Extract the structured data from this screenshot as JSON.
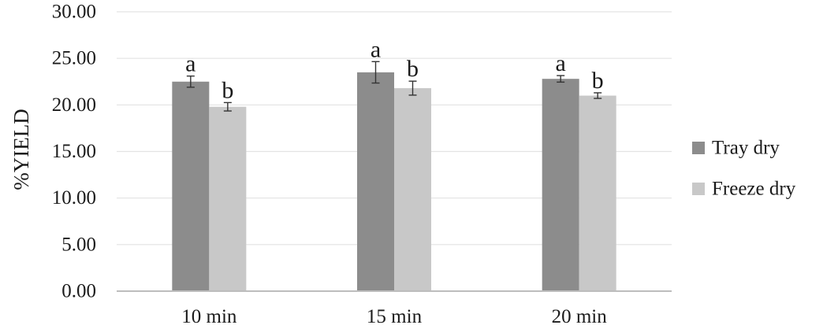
{
  "chart_data": {
    "type": "bar",
    "title": "",
    "xlabel": "",
    "ylabel": "%YIELD",
    "ylim": [
      0,
      30
    ],
    "ytick_step": 5,
    "ytick_format": "0.00",
    "grid": true,
    "legend_position": "right",
    "categories": [
      "10 min",
      "15 min",
      "20 min"
    ],
    "series": [
      {
        "name": "Tray dry",
        "color": "#8c8c8c",
        "values": [
          22.5,
          23.5,
          22.8
        ],
        "errors": [
          0.6,
          1.15,
          0.35
        ],
        "labels": [
          "a",
          "a",
          "a"
        ]
      },
      {
        "name": "Freeze dry",
        "color": "#c8c8c8",
        "values": [
          19.8,
          21.8,
          21.0
        ],
        "errors": [
          0.45,
          0.75,
          0.3
        ],
        "labels": [
          "b",
          "b",
          "b"
        ]
      }
    ]
  }
}
